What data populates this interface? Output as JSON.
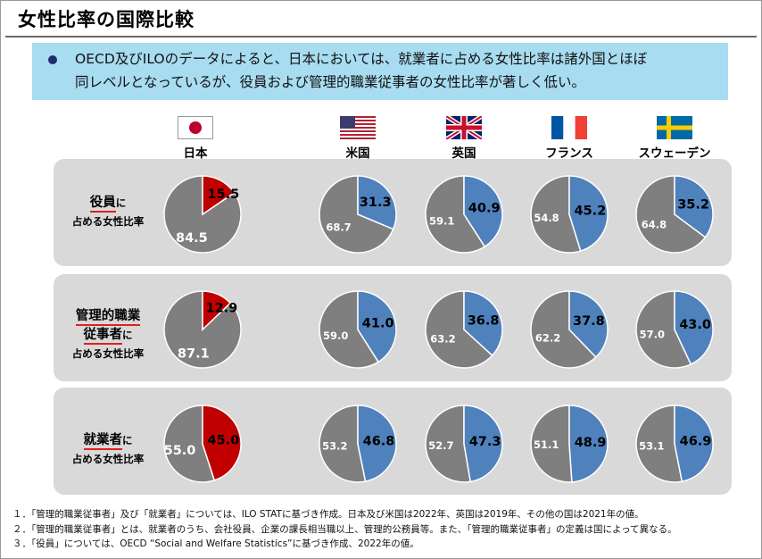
{
  "title": "女性比率の国際比較",
  "summary_line1": "OECD及びILOのデータによると、日本においては、就業者に占める女性比率は諸外国とほぼ",
  "summary_line2": "同レベルとなっているが、役員および管理的職業従事者の女性比率が著しく低い。",
  "colors": {
    "japan": "#c00000",
    "others": "#4f81bd",
    "rest": "#7f7f7f",
    "panel": "#d9d9d9",
    "banner": "#a8dcf1"
  },
  "chart_data": {
    "type": "pie",
    "countries": [
      "日本",
      "米国",
      "英国",
      "フランス",
      "スウェーデン"
    ],
    "metrics": [
      {
        "key": "executives",
        "label_main": "役員",
        "label_suffix": "に",
        "label_sub": "占める女性比率",
        "female": [
          15.5,
          31.3,
          40.9,
          45.2,
          35.2
        ],
        "rest": [
          84.5,
          68.7,
          59.1,
          54.8,
          64.8
        ]
      },
      {
        "key": "managers",
        "label_main": "管理的職業",
        "label_main2": "従事者",
        "label_suffix": "に",
        "label_sub": "占める女性比率",
        "female": [
          12.9,
          41.0,
          36.8,
          37.8,
          43.0
        ],
        "rest": [
          87.1,
          59.0,
          63.2,
          62.2,
          57.0
        ]
      },
      {
        "key": "workers",
        "label_main": "就業者",
        "label_suffix": "に",
        "label_sub": "占める女性比率",
        "female": [
          45.0,
          46.8,
          47.3,
          48.9,
          46.9
        ],
        "rest": [
          55.0,
          53.2,
          52.7,
          51.1,
          53.1
        ]
      }
    ]
  },
  "notes": [
    "１．「管理的職業従事者」及び「就業者」については、ILO STATに基づき作成。日本及び米国は2022年、英国は2019年、その他の国は2021年の値。",
    "２．「管理的職業従事者」とは、就業者のうち、会社役員、企業の課長相当職以上、管理的公務員等。また、「管理的職業従事者」の定義は国によって異なる。",
    "３．「役員」については、OECD “Social and Welfare Statistics”に基づき作成、2022年の値。"
  ]
}
